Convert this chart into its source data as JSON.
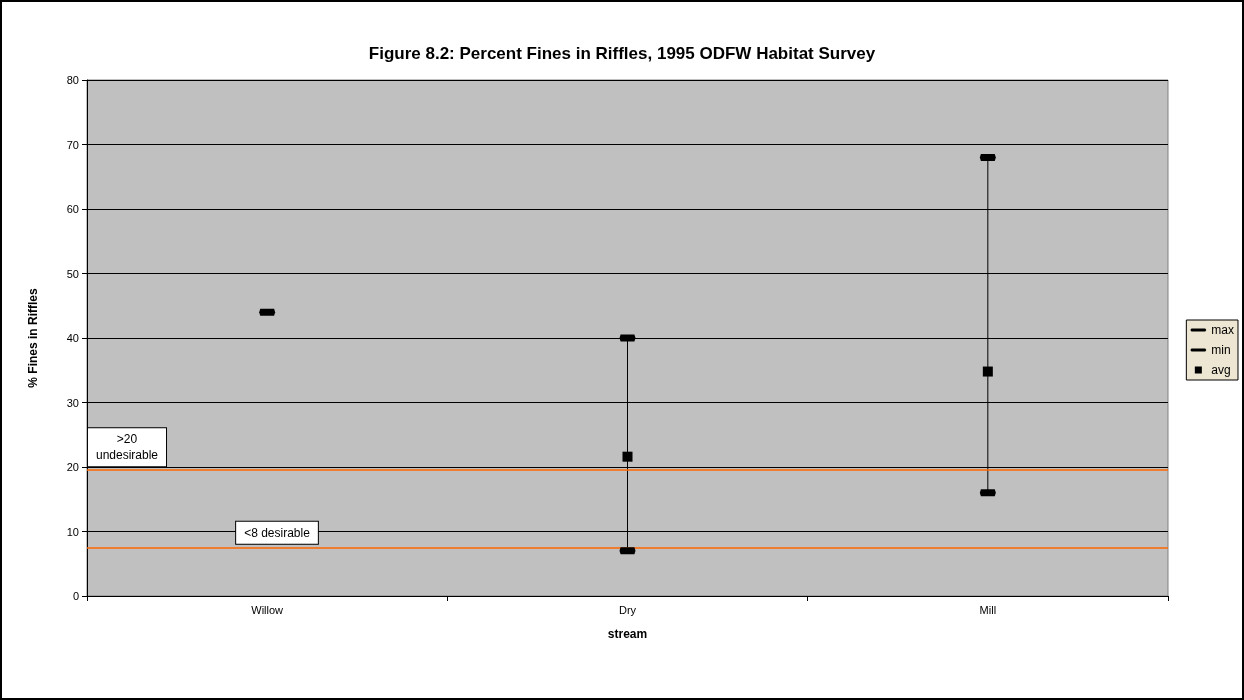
{
  "chart_data": {
    "type": "scatter",
    "title": "Figure 8.2: Percent Fines in Riffles, 1995 ODFW Habitat Survey",
    "xlabel": "stream",
    "ylabel": "% Fines in Riffles",
    "categories": [
      "Willow",
      "Dry",
      "Mill"
    ],
    "series": [
      {
        "name": "max",
        "color": "#000000",
        "values": [
          44,
          40,
          68
        ]
      },
      {
        "name": "min",
        "color": "#000000",
        "values": [
          null,
          7,
          16
        ]
      },
      {
        "name": "avg",
        "color": "#000000",
        "marker": "square",
        "values": [
          null,
          21.6,
          34.8
        ]
      }
    ],
    "ylim": [
      0,
      80
    ],
    "yticks": [
      0,
      10,
      20,
      30,
      40,
      50,
      60,
      70,
      80
    ],
    "grid": "y",
    "legend": "right",
    "ref_lines": [
      {
        "axis": "y",
        "value": 19.5,
        "label": ">20\nundesirable",
        "color": "#ff6600"
      },
      {
        "axis": "y",
        "value": 7.5,
        "label": "<8 desirable",
        "color": "#ff6600"
      }
    ]
  }
}
